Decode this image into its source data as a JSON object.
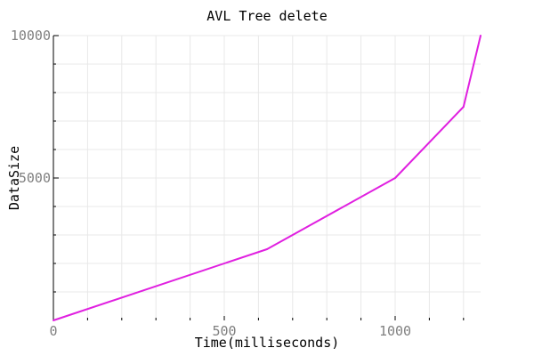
{
  "chart_data": {
    "type": "line",
    "title": "AVL Tree delete",
    "xlabel": "Time(milliseconds)",
    "ylabel": "DataSize",
    "xlim": [
      0,
      1250
    ],
    "ylim": [
      0,
      10000
    ],
    "x_major_ticks": [
      0,
      500,
      1000
    ],
    "x_minor_ticks": [
      100,
      200,
      300,
      400,
      600,
      700,
      800,
      900,
      1100,
      1200
    ],
    "y_major_ticks": [
      5000,
      10000
    ],
    "y_minor_ticks": [
      1000,
      2000,
      3000,
      4000,
      6000,
      7000,
      8000,
      9000
    ],
    "grid": true,
    "series": [
      {
        "color": "#e020e0",
        "x": [
          0,
          625,
          1000,
          1200,
          1250
        ],
        "y": [
          0,
          2500,
          5000,
          7500,
          10000
        ]
      }
    ]
  }
}
